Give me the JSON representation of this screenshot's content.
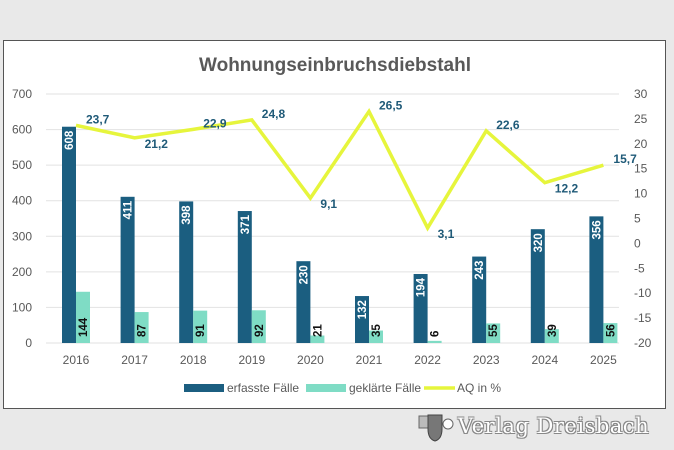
{
  "chart_data": {
    "type": "bar",
    "title": "Wohnungseinbruchsdiebstahl",
    "categories": [
      "2016",
      "2017",
      "2018",
      "2019",
      "2020",
      "2021",
      "2022",
      "2023",
      "2024",
      "2025"
    ],
    "series": [
      {
        "name": "erfasste Fälle",
        "type": "bar",
        "axis": "left",
        "color": "#1b5e80",
        "values": [
          608,
          411,
          398,
          371,
          230,
          132,
          194,
          243,
          320,
          356
        ]
      },
      {
        "name": "geklärte Fälle",
        "type": "bar",
        "axis": "left",
        "color": "#7fdcc5",
        "values": [
          144,
          87,
          91,
          92,
          21,
          35,
          6,
          55,
          39,
          56
        ]
      },
      {
        "name": "AQ in %",
        "type": "line",
        "axis": "right",
        "color": "#e6f53c",
        "values": [
          23.7,
          21.2,
          22.9,
          24.8,
          9.1,
          26.5,
          3.1,
          22.6,
          12.2,
          15.7
        ],
        "labels": [
          "23,7",
          "21,2",
          "22,9",
          "24,8",
          "9,1",
          "26,5",
          "3,1",
          "22,6",
          "12,2",
          "15,7"
        ]
      }
    ],
    "y_left": {
      "range": [
        0,
        700
      ],
      "ticks": [
        "0",
        "100",
        "200",
        "300",
        "400",
        "500",
        "600",
        "700"
      ]
    },
    "y_right": {
      "range": [
        -20,
        30
      ],
      "ticks": [
        "-20",
        "-15",
        "-10",
        "-5",
        "0",
        "5",
        "10",
        "15",
        "20",
        "25",
        "30"
      ]
    },
    "grid": true,
    "legend": "bottom"
  },
  "watermark": "Verlag Dreisbach"
}
